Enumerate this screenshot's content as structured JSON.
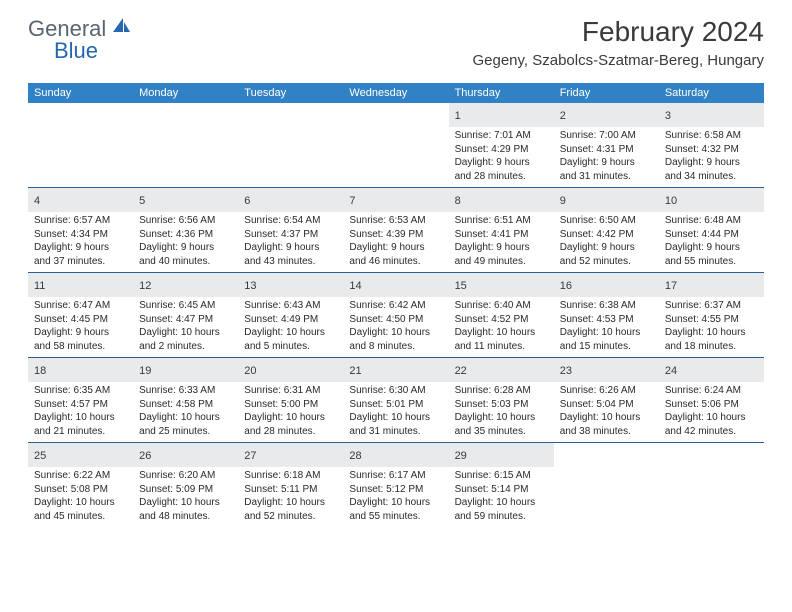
{
  "logo": {
    "text1": "General",
    "text2": "Blue"
  },
  "title": "February 2024",
  "location": "Gegeny, Szabolcs-Szatmar-Bereg, Hungary",
  "colors": {
    "header_bg": "#3082c5",
    "week_divider": "#2f5f8f",
    "daynum_bg": "#e9eaeb",
    "logo_gray": "#5a6570",
    "logo_blue": "#2668af"
  },
  "weekdays": [
    "Sunday",
    "Monday",
    "Tuesday",
    "Wednesday",
    "Thursday",
    "Friday",
    "Saturday"
  ],
  "weeks": [
    [
      {
        "n": "",
        "lines": []
      },
      {
        "n": "",
        "lines": []
      },
      {
        "n": "",
        "lines": []
      },
      {
        "n": "",
        "lines": []
      },
      {
        "n": "1",
        "lines": [
          "Sunrise: 7:01 AM",
          "Sunset: 4:29 PM",
          "Daylight: 9 hours and 28 minutes."
        ]
      },
      {
        "n": "2",
        "lines": [
          "Sunrise: 7:00 AM",
          "Sunset: 4:31 PM",
          "Daylight: 9 hours and 31 minutes."
        ]
      },
      {
        "n": "3",
        "lines": [
          "Sunrise: 6:58 AM",
          "Sunset: 4:32 PM",
          "Daylight: 9 hours and 34 minutes."
        ]
      }
    ],
    [
      {
        "n": "4",
        "lines": [
          "Sunrise: 6:57 AM",
          "Sunset: 4:34 PM",
          "Daylight: 9 hours and 37 minutes."
        ]
      },
      {
        "n": "5",
        "lines": [
          "Sunrise: 6:56 AM",
          "Sunset: 4:36 PM",
          "Daylight: 9 hours and 40 minutes."
        ]
      },
      {
        "n": "6",
        "lines": [
          "Sunrise: 6:54 AM",
          "Sunset: 4:37 PM",
          "Daylight: 9 hours and 43 minutes."
        ]
      },
      {
        "n": "7",
        "lines": [
          "Sunrise: 6:53 AM",
          "Sunset: 4:39 PM",
          "Daylight: 9 hours and 46 minutes."
        ]
      },
      {
        "n": "8",
        "lines": [
          "Sunrise: 6:51 AM",
          "Sunset: 4:41 PM",
          "Daylight: 9 hours and 49 minutes."
        ]
      },
      {
        "n": "9",
        "lines": [
          "Sunrise: 6:50 AM",
          "Sunset: 4:42 PM",
          "Daylight: 9 hours and 52 minutes."
        ]
      },
      {
        "n": "10",
        "lines": [
          "Sunrise: 6:48 AM",
          "Sunset: 4:44 PM",
          "Daylight: 9 hours and 55 minutes."
        ]
      }
    ],
    [
      {
        "n": "11",
        "lines": [
          "Sunrise: 6:47 AM",
          "Sunset: 4:45 PM",
          "Daylight: 9 hours and 58 minutes."
        ]
      },
      {
        "n": "12",
        "lines": [
          "Sunrise: 6:45 AM",
          "Sunset: 4:47 PM",
          "Daylight: 10 hours and 2 minutes."
        ]
      },
      {
        "n": "13",
        "lines": [
          "Sunrise: 6:43 AM",
          "Sunset: 4:49 PM",
          "Daylight: 10 hours and 5 minutes."
        ]
      },
      {
        "n": "14",
        "lines": [
          "Sunrise: 6:42 AM",
          "Sunset: 4:50 PM",
          "Daylight: 10 hours and 8 minutes."
        ]
      },
      {
        "n": "15",
        "lines": [
          "Sunrise: 6:40 AM",
          "Sunset: 4:52 PM",
          "Daylight: 10 hours and 11 minutes."
        ]
      },
      {
        "n": "16",
        "lines": [
          "Sunrise: 6:38 AM",
          "Sunset: 4:53 PM",
          "Daylight: 10 hours and 15 minutes."
        ]
      },
      {
        "n": "17",
        "lines": [
          "Sunrise: 6:37 AM",
          "Sunset: 4:55 PM",
          "Daylight: 10 hours and 18 minutes."
        ]
      }
    ],
    [
      {
        "n": "18",
        "lines": [
          "Sunrise: 6:35 AM",
          "Sunset: 4:57 PM",
          "Daylight: 10 hours and 21 minutes."
        ]
      },
      {
        "n": "19",
        "lines": [
          "Sunrise: 6:33 AM",
          "Sunset: 4:58 PM",
          "Daylight: 10 hours and 25 minutes."
        ]
      },
      {
        "n": "20",
        "lines": [
          "Sunrise: 6:31 AM",
          "Sunset: 5:00 PM",
          "Daylight: 10 hours and 28 minutes."
        ]
      },
      {
        "n": "21",
        "lines": [
          "Sunrise: 6:30 AM",
          "Sunset: 5:01 PM",
          "Daylight: 10 hours and 31 minutes."
        ]
      },
      {
        "n": "22",
        "lines": [
          "Sunrise: 6:28 AM",
          "Sunset: 5:03 PM",
          "Daylight: 10 hours and 35 minutes."
        ]
      },
      {
        "n": "23",
        "lines": [
          "Sunrise: 6:26 AM",
          "Sunset: 5:04 PM",
          "Daylight: 10 hours and 38 minutes."
        ]
      },
      {
        "n": "24",
        "lines": [
          "Sunrise: 6:24 AM",
          "Sunset: 5:06 PM",
          "Daylight: 10 hours and 42 minutes."
        ]
      }
    ],
    [
      {
        "n": "25",
        "lines": [
          "Sunrise: 6:22 AM",
          "Sunset: 5:08 PM",
          "Daylight: 10 hours and 45 minutes."
        ]
      },
      {
        "n": "26",
        "lines": [
          "Sunrise: 6:20 AM",
          "Sunset: 5:09 PM",
          "Daylight: 10 hours and 48 minutes."
        ]
      },
      {
        "n": "27",
        "lines": [
          "Sunrise: 6:18 AM",
          "Sunset: 5:11 PM",
          "Daylight: 10 hours and 52 minutes."
        ]
      },
      {
        "n": "28",
        "lines": [
          "Sunrise: 6:17 AM",
          "Sunset: 5:12 PM",
          "Daylight: 10 hours and 55 minutes."
        ]
      },
      {
        "n": "29",
        "lines": [
          "Sunrise: 6:15 AM",
          "Sunset: 5:14 PM",
          "Daylight: 10 hours and 59 minutes."
        ]
      },
      {
        "n": "",
        "lines": []
      },
      {
        "n": "",
        "lines": []
      }
    ]
  ]
}
